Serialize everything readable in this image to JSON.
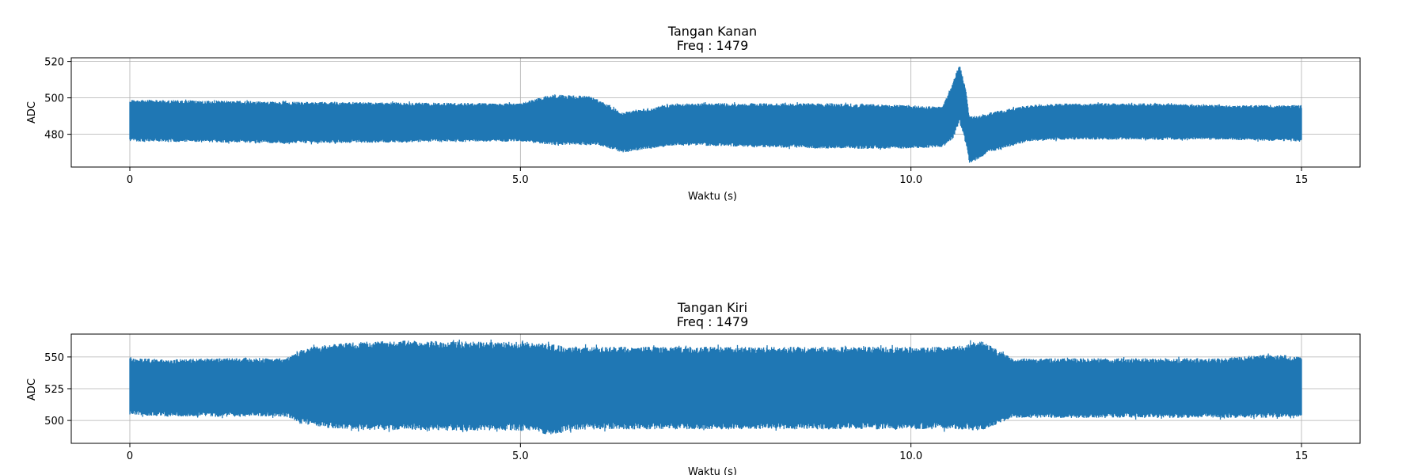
{
  "chart_data": [
    {
      "type": "line",
      "title_line1": "Tangan Kanan",
      "title_line2": "Freq : 1479",
      "xlabel": "Waktu (s)",
      "ylabel": "ADC",
      "xlim": [
        -0.75,
        15.75
      ],
      "ylim": [
        462,
        522
      ],
      "xticks": [
        0,
        5,
        10,
        15
      ],
      "xtick_labels": [
        "0",
        "5.0",
        "10.0",
        "15"
      ],
      "yticks": [
        480,
        500,
        520
      ],
      "ytick_labels": [
        "480",
        "500",
        "520"
      ],
      "grid": true,
      "color": "#1f77b4",
      "envelope": {
        "x": [
          0,
          0.1,
          2,
          5,
          5.4,
          5.9,
          6.0,
          6.3,
          7,
          8,
          9,
          10,
          10.4,
          10.55,
          10.62,
          10.7,
          10.75,
          10.85,
          11,
          11.5,
          12,
          13,
          14,
          15
        ],
        "upper": [
          499,
          499,
          498,
          497,
          502,
          501,
          499,
          492,
          497,
          497,
          497,
          496,
          495,
          510,
          519,
          505,
          490,
          490,
          492,
          496,
          497,
          497,
          496,
          496
        ],
        "lower": [
          476,
          476,
          475,
          476,
          474,
          474,
          474,
          470,
          474,
          473,
          472,
          472,
          473,
          478,
          487,
          475,
          464,
          466,
          470,
          476,
          477,
          477,
          477,
          476
        ]
      }
    },
    {
      "type": "line",
      "title_line1": "Tangan Kiri",
      "title_line2": "Freq :  1479",
      "xlabel": "Waktu (s)",
      "ylabel": "ADC",
      "xlim": [
        -0.75,
        15.75
      ],
      "ylim": [
        482,
        568
      ],
      "xticks": [
        0,
        5,
        10,
        15
      ],
      "xtick_labels": [
        "0",
        "5.0",
        "10.0",
        "15"
      ],
      "yticks": [
        500,
        525,
        550
      ],
      "ytick_labels": [
        "500",
        "525",
        "550"
      ],
      "grid": true,
      "color": "#1f77b4",
      "envelope": {
        "x": [
          0,
          0.1,
          0.5,
          1,
          2,
          2.2,
          2.5,
          3,
          3.5,
          4.5,
          5.2,
          5.4,
          5.6,
          6,
          7,
          8,
          9,
          10,
          10.5,
          10.9,
          11.3,
          12,
          13,
          14,
          14.5,
          15
        ],
        "upper": [
          550,
          549,
          548,
          549,
          549,
          556,
          560,
          562,
          563,
          562,
          562,
          560,
          558,
          558,
          558,
          558,
          558,
          558,
          558,
          563,
          549,
          549,
          549,
          549,
          552,
          550
        ],
        "lower": [
          504,
          504,
          503,
          503,
          503,
          497,
          494,
          493,
          492,
          492,
          492,
          487,
          492,
          493,
          493,
          493,
          493,
          493,
          493,
          492,
          502,
          502,
          502,
          502,
          502,
          503
        ]
      }
    }
  ]
}
